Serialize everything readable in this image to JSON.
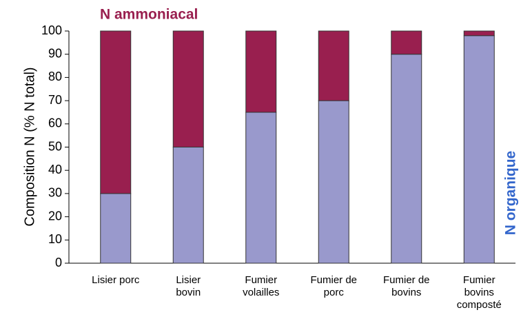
{
  "chart_data": {
    "type": "stacked_bar",
    "ylabel": "Composition N (% N total)",
    "categories": [
      "Lisier porc",
      "Lisier\nbovin",
      "Fumier\nvolailles",
      "Fumier de\nporc",
      "Fumier de\nbovins",
      "Fumier\nbovins\ncomposté"
    ],
    "series": [
      {
        "name": "N organique",
        "color": "#9999cc",
        "label_color": "#3366cc",
        "values": [
          30,
          50,
          65,
          70,
          90,
          98
        ]
      },
      {
        "name": "N ammoniacal",
        "color": "#991f4f",
        "label_color": "#991f4f",
        "values": [
          70,
          50,
          35,
          30,
          10,
          2
        ]
      }
    ],
    "ylim": [
      0,
      100
    ],
    "yticks": [
      0,
      10,
      20,
      30,
      40,
      50,
      60,
      70,
      80,
      90,
      100
    ],
    "grid": false
  }
}
